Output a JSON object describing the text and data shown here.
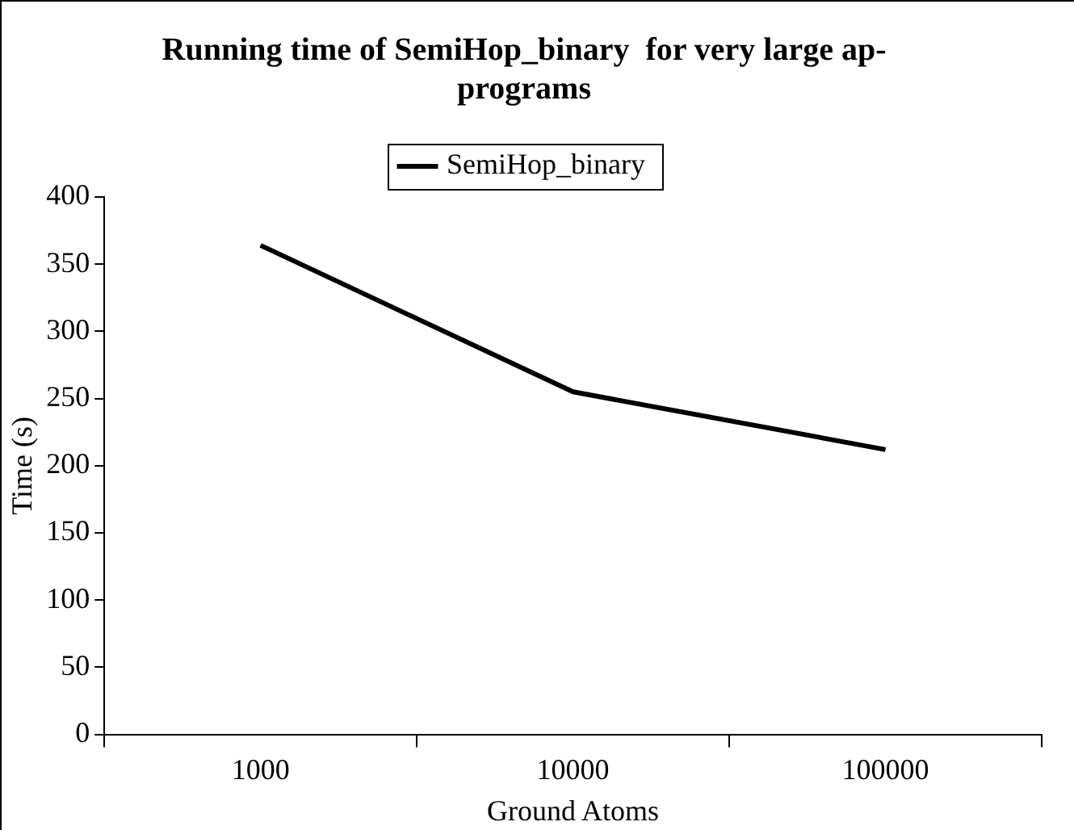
{
  "chart_data": {
    "type": "line",
    "title": "Running time of SemiHop_binary  for very large ap-\nprograms",
    "xlabel": "Ground Atoms",
    "ylabel": "Time (s)",
    "categories": [
      "1000",
      "10000",
      "100000"
    ],
    "series": [
      {
        "name": "SemiHop_binary",
        "color": "#000000",
        "values": [
          364,
          255,
          212
        ]
      }
    ],
    "ylim": [
      0,
      400
    ],
    "yticks": [
      0,
      50,
      100,
      150,
      200,
      250,
      300,
      350,
      400
    ],
    "grid": false,
    "legend": "top",
    "marker": "none",
    "line_style": "solid"
  }
}
